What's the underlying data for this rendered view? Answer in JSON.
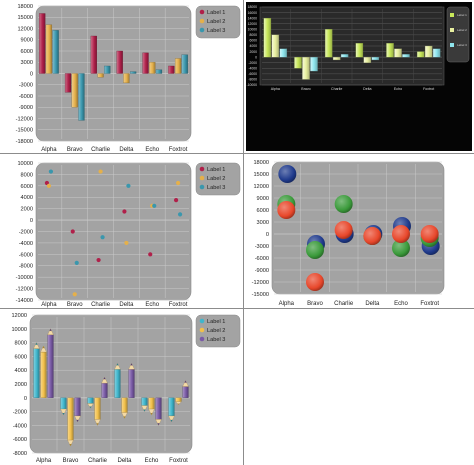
{
  "chart_data": [
    {
      "type": "bar",
      "style": "gradient-bars",
      "theme": "light",
      "categories": [
        "Alpha",
        "Bravo",
        "Charlie",
        "Delta",
        "Echo",
        "Foxtrot"
      ],
      "series": [
        {
          "name": "Label 1",
          "color": "#b0204a",
          "values": [
            16000,
            -5000,
            10000,
            6000,
            5500,
            2000
          ]
        },
        {
          "name": "Label 2",
          "color": "#e5b04a",
          "values": [
            13000,
            -9000,
            -1000,
            -2500,
            3000,
            4000
          ]
        },
        {
          "name": "Label 3",
          "color": "#3a97ad",
          "values": [
            11500,
            -12500,
            2000,
            500,
            1000,
            5000
          ]
        }
      ],
      "y_ticks": [
        18000,
        15000,
        12000,
        9000,
        6000,
        3000,
        0,
        -3000,
        -6000,
        -9000,
        -12000,
        -15000,
        -18000
      ],
      "ylim": [
        -18000,
        18000
      ],
      "grid": true,
      "legend_position": "top-right"
    },
    {
      "type": "bar",
      "style": "glossy-bars",
      "theme": "dark",
      "categories": [
        "Alpha",
        "Bravo",
        "Charlie",
        "Delta",
        "Echo",
        "Foxtrot"
      ],
      "series": [
        {
          "name": "Label 1",
          "color": "#c8e85a",
          "values": [
            14000,
            -4000,
            10000,
            5000,
            5000,
            2000
          ]
        },
        {
          "name": "Label 2",
          "color": "#e8f0a0",
          "values": [
            8000,
            -8000,
            -1000,
            -2000,
            3000,
            4000
          ]
        },
        {
          "name": "Label 3",
          "color": "#8fe6ee",
          "values": [
            3000,
            -5000,
            1000,
            -1000,
            1000,
            3000
          ]
        }
      ],
      "y_ticks": [
        18000,
        16000,
        14000,
        12000,
        10000,
        8000,
        6000,
        4000,
        2000,
        0,
        -2000,
        -4000,
        -6000,
        -8000,
        -10000
      ],
      "ylim": [
        -10000,
        18000
      ],
      "grid": true,
      "legend_position": "top-right"
    },
    {
      "type": "scatter",
      "style": "dots",
      "theme": "light",
      "categories": [
        "Alpha",
        "Bravo",
        "Charlie",
        "Delta",
        "Echo",
        "Foxtrot"
      ],
      "series": [
        {
          "name": "Label 1",
          "color": "#b0204a",
          "values": [
            6500,
            -2000,
            -7000,
            1500,
            -6000,
            3500
          ]
        },
        {
          "name": "Label 2",
          "color": "#e5b04a",
          "values": [
            6000,
            -13000,
            8500,
            -4000,
            2500,
            6500
          ]
        },
        {
          "name": "Label 3",
          "color": "#3a97ad",
          "values": [
            8500,
            -7500,
            -3000,
            6000,
            2500,
            1000
          ]
        }
      ],
      "y_ticks": [
        10000,
        8000,
        6000,
        4000,
        2000,
        0,
        -2000,
        -4000,
        -6000,
        -8000,
        -10000,
        -12000,
        -14000
      ],
      "ylim": [
        -14000,
        10000
      ],
      "grid": true,
      "legend_position": "top-right"
    },
    {
      "type": "scatter",
      "style": "bubbles",
      "theme": "light",
      "categories": [
        "Alpha",
        "Bravo",
        "Charlie",
        "Delta",
        "Echo",
        "Foxtrot"
      ],
      "series": [
        {
          "name": "",
          "color": "#1f3a8c",
          "values": [
            15000,
            -2500,
            0,
            0,
            2000,
            -3000
          ]
        },
        {
          "name": "",
          "color": "#3a9a3a",
          "values": [
            7500,
            -4000,
            7500,
            -500,
            -3500,
            -1000
          ]
        },
        {
          "name": "",
          "color": "#e8472b",
          "values": [
            6000,
            -12000,
            1000,
            -500,
            0,
            0
          ]
        }
      ],
      "y_ticks": [
        18000,
        15000,
        12000,
        9000,
        6000,
        3000,
        0,
        -3000,
        -6000,
        -9000,
        -12000,
        -15000
      ],
      "ylim": [
        -15000,
        18000
      ],
      "grid": true,
      "legend_position": "none"
    },
    {
      "type": "bar",
      "style": "pencil-bars",
      "theme": "light",
      "categories": [
        "Alpha",
        "Bravo",
        "Charlie",
        "Delta",
        "Echo",
        "Foxtrot"
      ],
      "series": [
        {
          "name": "Label 1",
          "color": "#3fb6cc",
          "values": [
            8000,
            -2500,
            -1500,
            5000,
            -2000,
            -3500
          ]
        },
        {
          "name": "Label 2",
          "color": "#f2c04a",
          "values": [
            7500,
            -7000,
            -4000,
            -3000,
            -2500,
            -1000
          ]
        },
        {
          "name": "Label 3",
          "color": "#7a5aa6",
          "values": [
            10000,
            -3500,
            3000,
            5000,
            -4000,
            2500
          ]
        }
      ],
      "y_ticks": [
        12000,
        10000,
        8000,
        6000,
        4000,
        2000,
        0,
        -2000,
        -4000,
        -6000,
        -8000
      ],
      "ylim": [
        -8000,
        12000
      ],
      "grid": true,
      "legend_position": "top-right"
    }
  ]
}
